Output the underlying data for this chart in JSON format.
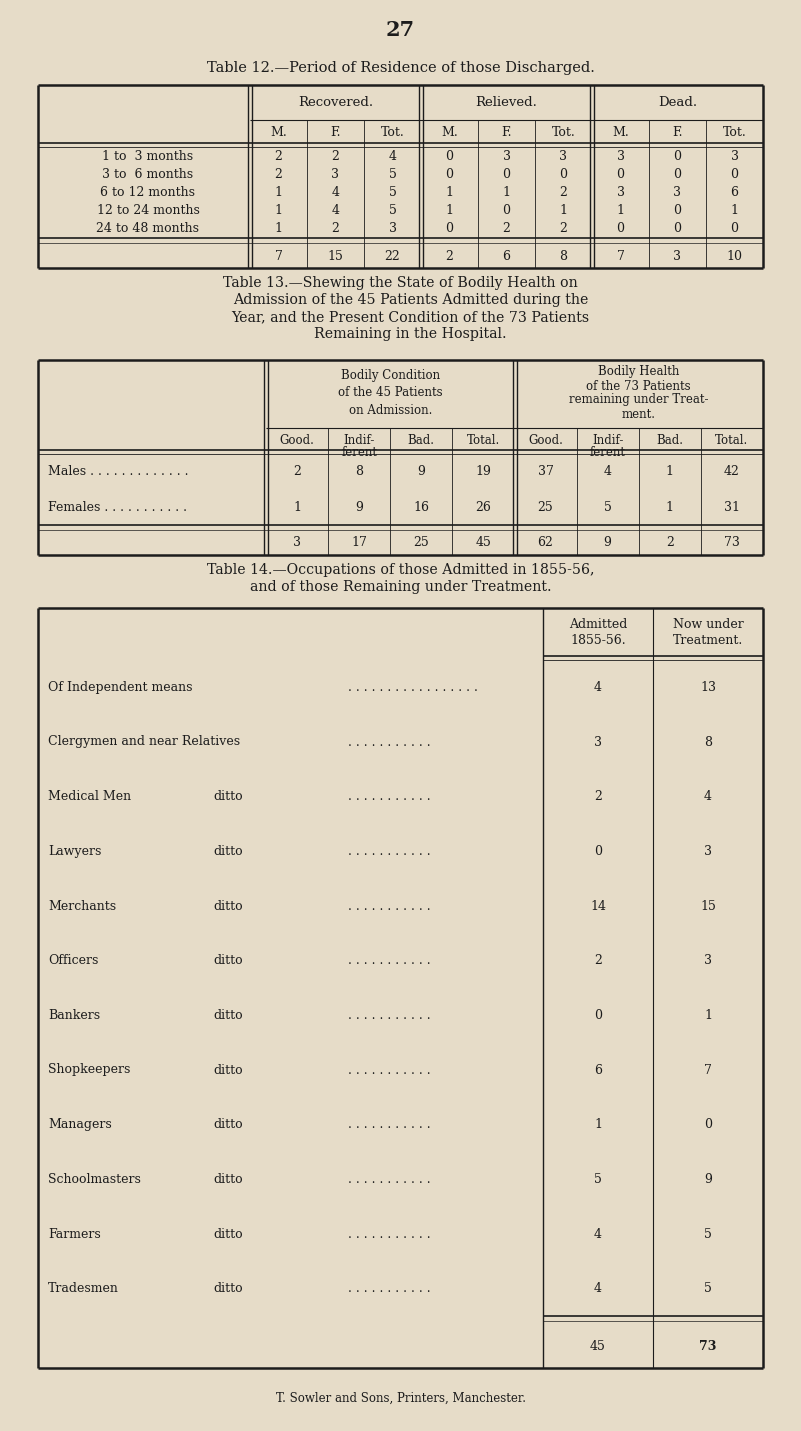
{
  "bg_color": "#e6dcc8",
  "page_number": "27",
  "table12_title": "Table 12.—Period of Residence of those Discharged.",
  "table12_col_groups": [
    "Recovered.",
    "Relieved.",
    "Dead."
  ],
  "table12_sub_cols": [
    "M.",
    "F.",
    "Tot."
  ],
  "table12_row_labels": [
    "1 to  3 months",
    "3 to  6 months",
    "6 to 12 months",
    "12 to 24 months",
    "24 to 48 months"
  ],
  "table12_data": [
    [
      2,
      2,
      4,
      0,
      3,
      3,
      3,
      0,
      3
    ],
    [
      2,
      3,
      5,
      0,
      0,
      0,
      0,
      0,
      0
    ],
    [
      1,
      4,
      5,
      1,
      1,
      2,
      3,
      3,
      6
    ],
    [
      1,
      4,
      5,
      1,
      0,
      1,
      1,
      0,
      1
    ],
    [
      1,
      2,
      3,
      0,
      2,
      2,
      0,
      0,
      0
    ]
  ],
  "table12_totals": [
    7,
    15,
    22,
    2,
    6,
    8,
    7,
    3,
    10
  ],
  "table13_title_lines": [
    "Table 13.—Shewing the State of Bodily Health on",
    "Admission of the 45 Patients Admitted during the",
    "Year, and the Present Condition of the 73 Patients",
    "Remaining in the Hospital."
  ],
  "table13_col_group1": [
    "Bodily Condition",
    "of the 45 Patients",
    "on Admission."
  ],
  "table13_col_group2": [
    "Bodily Health",
    "of the 73 Patients",
    "remaining under Treat-",
    "ment."
  ],
  "table13_sub_cols1": [
    "Good.",
    "Indif-\nferent",
    "Bad.",
    "Total."
  ],
  "table13_sub_cols2": [
    "Good.",
    "Indif-\nferent",
    "Bad.",
    "Total."
  ],
  "table13_row_labels": [
    "Males . . . . . . . . . . . . .",
    "Females . . . . . . . . . . ."
  ],
  "table13_data": [
    [
      2,
      8,
      9,
      19,
      37,
      4,
      1,
      42
    ],
    [
      1,
      9,
      16,
      26,
      25,
      5,
      1,
      31
    ]
  ],
  "table13_totals": [
    3,
    17,
    25,
    45,
    62,
    9,
    2,
    73
  ],
  "table14_title_lines": [
    "Table 14.—Occupations of those Admitted in 1855-56,",
    "and of those Remaining under Treatment."
  ],
  "table14_col_headers": [
    "Admitted\n1855-56.",
    "Now under\nTreatment."
  ],
  "table14_row_labels": [
    "Of Independent means . . . . . . . . . . . . . . . . .",
    "Clergymen and near Relatives . . . . . . . . . . .",
    "Medical Men         ditto         . . . . . . . . . . .",
    "Lawyers              ditto         . . . . . . . . . . .",
    "Merchants           ditto         . . . . . . . . . . .",
    "Officers               ditto         . . . . . . . . . . .",
    "Bankers               ditto         . . . . . . . . . . .",
    "Shopkeepers       ditto         . . . . . . . . . . .",
    "Managers           ditto         . . . . . . . . . . .",
    "Schoolmasters    ditto         . . . . . . . . . . .",
    "Farmers              ditto         . . . . . . . . . . .",
    "Tradesmen          ditto         . . . . . . . . . . ."
  ],
  "table14_labels_col1": [
    "Of Independent means",
    "Clergymen and near Relatives",
    "Medical Men",
    "Lawyers",
    "Merchants",
    "Officers",
    "Bankers",
    "Shopkeepers",
    "Managers",
    "Schoolmasters",
    "Farmers",
    "Tradesmen"
  ],
  "table14_labels_col2": [
    "",
    "",
    "ditto",
    "ditto",
    "ditto",
    "ditto",
    "ditto",
    "ditto",
    "ditto",
    "ditto",
    "ditto",
    "ditto"
  ],
  "table14_labels_dots": [
    ". . . . . . . . . . . . . . . . .",
    ". . . . . . . . . . .",
    ". . . . . . . . . . .",
    ". . . . . . . . . . .",
    ". . . . . . . . . . .",
    ". . . . . . . . . . .",
    ". . . . . . . . . . .",
    ". . . . . . . . . . .",
    ". . . . . . . . . . .",
    ". . . . . . . . . . .",
    ". . . . . . . . . . .",
    ". . . . . . . . . . ."
  ],
  "table14_admitted": [
    4,
    3,
    2,
    0,
    14,
    2,
    0,
    6,
    1,
    5,
    4,
    4
  ],
  "table14_treatment": [
    13,
    8,
    4,
    3,
    15,
    3,
    1,
    7,
    0,
    9,
    5,
    5
  ],
  "table14_totals": [
    45,
    73
  ],
  "footer": "T. Sowler and Sons, Printers, Manchester."
}
